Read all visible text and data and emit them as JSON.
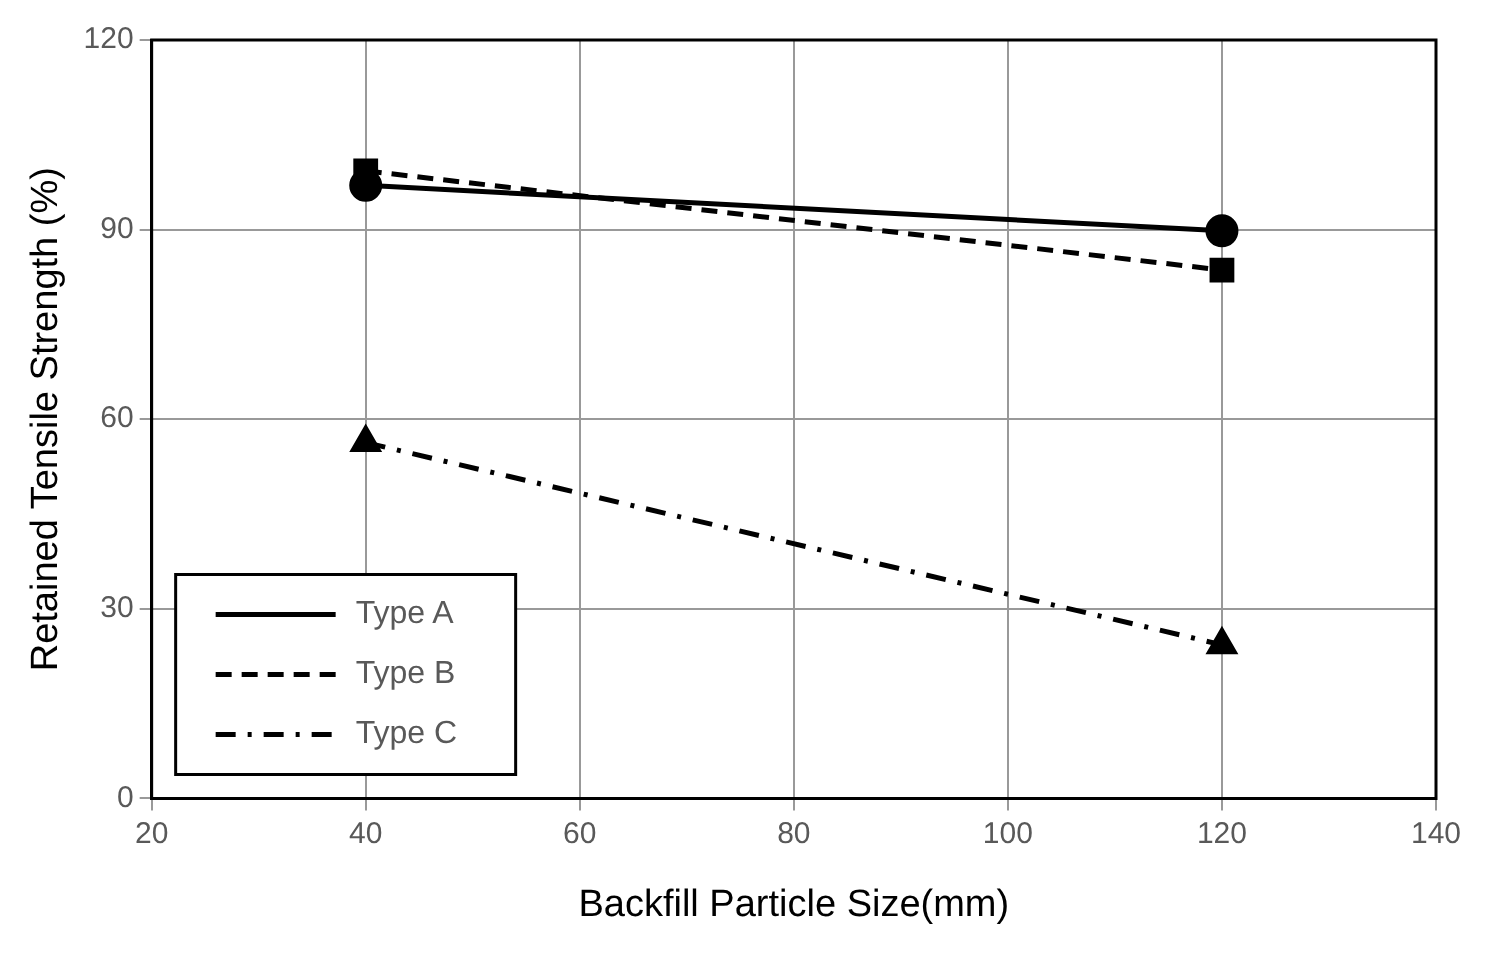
{
  "chart_data": {
    "type": "line",
    "xlabel": "Backfill Particle Size(mm)",
    "ylabel": "Retained Tensile Strength (%)",
    "x": [
      40,
      120
    ],
    "xlim": [
      20,
      140
    ],
    "xticks": [
      20,
      40,
      60,
      80,
      100,
      120,
      140
    ],
    "ylim": [
      0,
      120
    ],
    "yticks": [
      0,
      30,
      60,
      90,
      120
    ],
    "grid": true,
    "legend": "bottom left",
    "series": [
      {
        "name": "Type A",
        "color": "#000000",
        "values": [
          97,
          89.8
        ],
        "marker": "circle",
        "line_style": "solid"
      },
      {
        "name": "Type B",
        "color": "#000000",
        "values": [
          99.3,
          83.6
        ],
        "marker": "square",
        "line_style": "dashed"
      },
      {
        "name": "Type C",
        "color": "#000000",
        "values": [
          56.3,
          24.3
        ],
        "marker": "triangle",
        "line_style": "dashdot"
      }
    ]
  }
}
